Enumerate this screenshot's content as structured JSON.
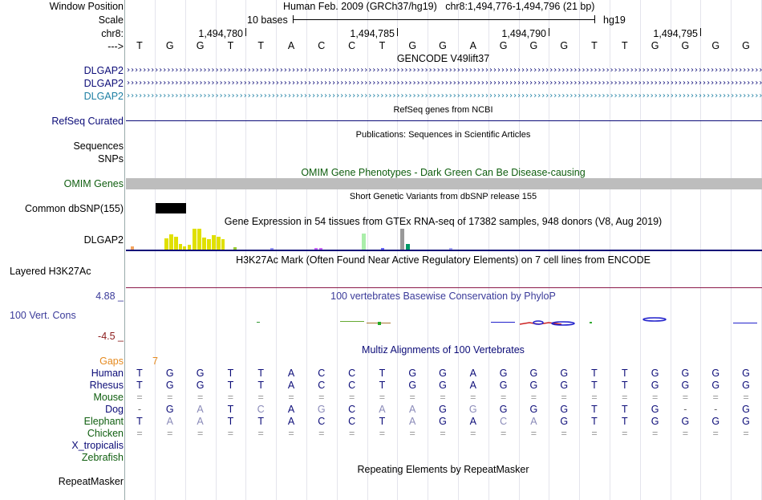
{
  "header": {
    "position_label": "Window Position",
    "position_text": "Human Feb. 2009 (GRCh37/hg19)   chr8:1,494,776-1,494,796 (21 bp)",
    "scale_label": "Scale",
    "scale_text": "10 bases",
    "assembly": "hg19",
    "chrom_label": "chr8:",
    "strand_label": "--->",
    "ticks": [
      "1,494,780",
      "1,494,785",
      "1,494,790",
      "1,494,795"
    ]
  },
  "base_sequence": [
    "T",
    "G",
    "G",
    "T",
    "T",
    "A",
    "C",
    "C",
    "T",
    "G",
    "G",
    "A",
    "G",
    "G",
    "G",
    "T",
    "T",
    "G",
    "G",
    "G",
    "G"
  ],
  "gencode": {
    "title": "GENCODE V49lift37",
    "genes": [
      "DLGAP2",
      "DLGAP2",
      "DLGAP2"
    ],
    "colors": [
      "#0c0c78",
      "#0c0c78",
      "#1d7fa3"
    ]
  },
  "refseq": {
    "title": "RefSeq genes from NCBI",
    "label": "RefSeq Curated",
    "color": "#0c0c78"
  },
  "publications": {
    "title": "Publications: Sequences in Scientific Articles",
    "labels": [
      "Sequences",
      "SNPs"
    ]
  },
  "omim": {
    "title": "OMIM Gene Phenotypes - Dark Green Can Be Disease-causing",
    "label": "OMIM Genes",
    "color": "#0f5e0f"
  },
  "dbsnp": {
    "title": "Short Genetic Variants from dbSNP release 155",
    "label": "Common dbSNP(155)"
  },
  "gtex": {
    "title": "Gene Expression in 54 tissues from GTEx RNA-seq of 17382 samples, 948 donors (V8, Aug 2019)",
    "label": "DLGAP2"
  },
  "h3k27ac": {
    "title": "H3K27Ac Mark (Often Found Near Active Regulatory Elements) on 7 cell lines from ENCODE",
    "label": "Layered H3K27Ac"
  },
  "phylop": {
    "title": "100 vertebrates Basewise Conservation by PhyloP",
    "label": "100 Vert. Cons",
    "max": "4.88 _",
    "min": "-4.5 _"
  },
  "multiz": {
    "title": "Multiz Alignments of 100 Vertebrates",
    "gaps_label": "Gaps",
    "gaps_value": "7",
    "species": [
      {
        "name": "Human",
        "color": "#0c0c78",
        "row": [
          "T",
          "G",
          "G",
          "T",
          "T",
          "A",
          "C",
          "C",
          "T",
          "G",
          "G",
          "A",
          "G",
          "G",
          "G",
          "T",
          "T",
          "G",
          "G",
          "G",
          "G"
        ]
      },
      {
        "name": "Rhesus",
        "color": "#0c0c78",
        "row": [
          "T",
          "G",
          "G",
          "T",
          "T",
          "A",
          "C",
          "C",
          "T",
          "G",
          "G",
          "A",
          "G",
          "G",
          "G",
          "T",
          "T",
          "G",
          "G",
          "G",
          "G"
        ]
      },
      {
        "name": "Mouse",
        "color": "#0f5e0f",
        "row": [
          "=",
          "=",
          "=",
          "=",
          "=",
          "=",
          "=",
          "=",
          "=",
          "=",
          "=",
          "=",
          "=",
          "=",
          "=",
          "=",
          "=",
          "=",
          "=",
          "=",
          "="
        ]
      },
      {
        "name": "Dog",
        "color": "#0c0c78",
        "row": [
          "-",
          "G",
          "A",
          "T",
          "C",
          "A",
          "G",
          "C",
          "A",
          "A",
          "G",
          "G",
          "G",
          "G",
          "G",
          "T",
          "T",
          "G",
          "-",
          "-",
          "G"
        ]
      },
      {
        "name": "Elephant",
        "color": "#0f5e0f",
        "row": [
          "T",
          "A",
          "A",
          "T",
          "T",
          "A",
          "C",
          "C",
          "T",
          "A",
          "G",
          "A",
          "C",
          "A",
          "G",
          "T",
          "T",
          "G",
          "G",
          "G",
          "G"
        ]
      },
      {
        "name": "Chicken",
        "color": "#0f5e0f",
        "row": [
          "=",
          "=",
          "=",
          "=",
          "=",
          "=",
          "=",
          "=",
          "=",
          "=",
          "=",
          "=",
          "=",
          "=",
          "=",
          "=",
          "=",
          "=",
          "=",
          "=",
          "="
        ]
      },
      {
        "name": "X_tropicalis",
        "color": "#0c0c78",
        "row": []
      },
      {
        "name": "Zebrafish",
        "color": "#0f5e0f",
        "row": []
      }
    ]
  },
  "repeatmasker": {
    "title": "Repeating Elements by RepeatMasker",
    "label": "RepeatMasker"
  }
}
